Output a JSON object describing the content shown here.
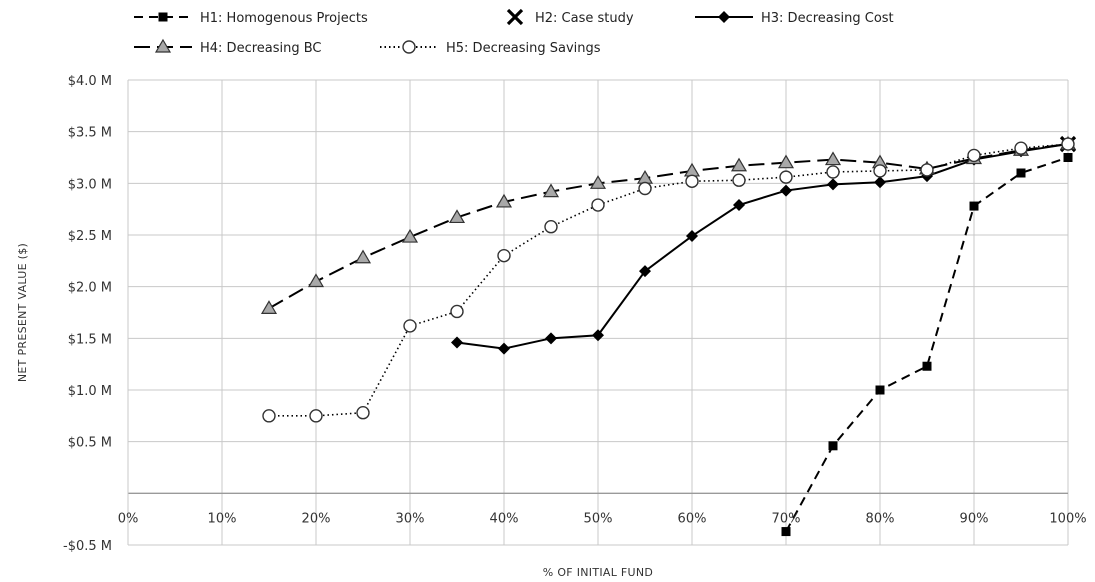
{
  "chart_data": {
    "type": "line",
    "title": "",
    "xlabel": "% OF INITIAL FUND",
    "ylabel": "NET PRESENT VALUE ($)",
    "xlim": [
      0,
      100
    ],
    "ylim": [
      -0.5,
      4.0
    ],
    "x_ticks": [
      {
        "value": 0,
        "label": "0%"
      },
      {
        "value": 10,
        "label": "10%"
      },
      {
        "value": 20,
        "label": "20%"
      },
      {
        "value": 30,
        "label": "30%"
      },
      {
        "value": 40,
        "label": "40%"
      },
      {
        "value": 50,
        "label": "50%"
      },
      {
        "value": 60,
        "label": "60%"
      },
      {
        "value": 70,
        "label": "70%"
      },
      {
        "value": 80,
        "label": "80%"
      },
      {
        "value": 90,
        "label": "90%"
      },
      {
        "value": 100,
        "label": "100%"
      }
    ],
    "y_ticks": [
      {
        "value": 4.0,
        "label": "$4.0 M"
      },
      {
        "value": 3.5,
        "label": "$3.5 M"
      },
      {
        "value": 3.0,
        "label": "$3.0 M"
      },
      {
        "value": 2.5,
        "label": "$2.5 M"
      },
      {
        "value": 2.0,
        "label": "$2.0 M"
      },
      {
        "value": 1.5,
        "label": "$1.5 M"
      },
      {
        "value": 1.0,
        "label": "$1.0 M"
      },
      {
        "value": 0.5,
        "label": "$0.5 M"
      },
      {
        "value": 0,
        "label": ""
      },
      {
        "value": -0.5,
        "label": "-$0.5 M"
      }
    ],
    "grid": "horizontal and vertical",
    "legend_position": "top",
    "series": [
      {
        "name": "H1: Homogenous Projects",
        "style": "dashed",
        "marker": "square",
        "color": "#000000",
        "points": [
          [
            70,
            -0.37
          ],
          [
            75,
            0.46
          ],
          [
            80,
            1.0
          ],
          [
            85,
            1.23
          ],
          [
            90,
            2.78
          ],
          [
            95,
            3.1
          ],
          [
            100,
            3.25
          ]
        ]
      },
      {
        "name": "H2: Case study",
        "style": "none",
        "marker": "x",
        "color": "#000000",
        "points": [
          [
            100,
            3.38
          ]
        ]
      },
      {
        "name": "H3: Decreasing Cost",
        "style": "solid",
        "marker": "diamond",
        "color": "#000000",
        "points": [
          [
            35,
            1.46
          ],
          [
            40,
            1.4
          ],
          [
            45,
            1.5
          ],
          [
            50,
            1.53
          ],
          [
            55,
            2.15
          ],
          [
            60,
            2.49
          ],
          [
            65,
            2.79
          ],
          [
            70,
            2.93
          ],
          [
            75,
            2.99
          ],
          [
            80,
            3.01
          ],
          [
            85,
            3.07
          ],
          [
            90,
            3.23
          ],
          [
            95,
            3.31
          ],
          [
            100,
            3.38
          ]
        ]
      },
      {
        "name": "H4: Decreasing BC",
        "style": "longdash",
        "marker": "triangle",
        "color": "#000000",
        "points": [
          [
            15,
            1.79
          ],
          [
            20,
            2.05
          ],
          [
            25,
            2.28
          ],
          [
            30,
            2.48
          ],
          [
            35,
            2.67
          ],
          [
            40,
            2.82
          ],
          [
            45,
            2.92
          ],
          [
            50,
            3.0
          ],
          [
            55,
            3.05
          ],
          [
            60,
            3.12
          ],
          [
            65,
            3.17
          ],
          [
            70,
            3.2
          ],
          [
            75,
            3.23
          ],
          [
            80,
            3.2
          ],
          [
            85,
            3.14
          ],
          [
            90,
            3.24
          ],
          [
            95,
            3.32
          ],
          [
            100,
            3.38
          ]
        ]
      },
      {
        "name": "H5: Decreasing Savings",
        "style": "dotted",
        "marker": "circle",
        "color": "#000000",
        "points": [
          [
            15,
            0.75
          ],
          [
            20,
            0.75
          ],
          [
            25,
            0.78
          ],
          [
            30,
            1.62
          ],
          [
            35,
            1.76
          ],
          [
            40,
            2.3
          ],
          [
            45,
            2.58
          ],
          [
            50,
            2.79
          ],
          [
            55,
            2.95
          ],
          [
            60,
            3.02
          ],
          [
            65,
            3.03
          ],
          [
            70,
            3.06
          ],
          [
            75,
            3.11
          ],
          [
            80,
            3.12
          ],
          [
            85,
            3.13
          ],
          [
            90,
            3.27
          ],
          [
            95,
            3.34
          ],
          [
            100,
            3.38
          ]
        ]
      }
    ]
  }
}
